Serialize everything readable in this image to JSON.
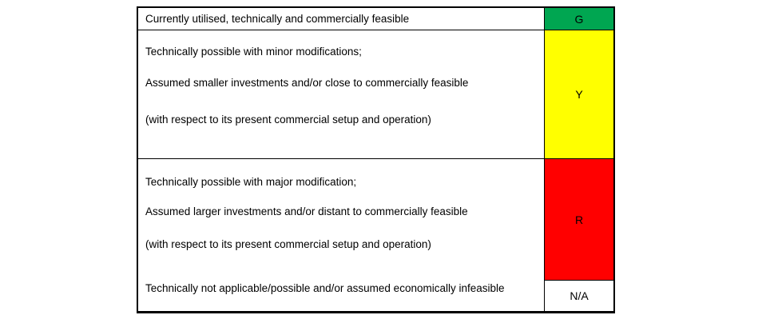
{
  "legend": {
    "rows": [
      {
        "code": "G",
        "color": "#00A651",
        "description": [
          "Currently utilised, technically and commercially feasible"
        ]
      },
      {
        "code": "Y",
        "color": "#FFFF00",
        "description": [
          "Technically possible with minor modifications;",
          "Assumed smaller investments and/or close to commercially feasible",
          "(with respect to its present commercial setup and operation)"
        ]
      },
      {
        "code": "R",
        "color": "#FF0000",
        "description": [
          "Technically possible with major modification;",
          "Assumed larger investments and/or distant to commercially feasible",
          "(with respect to its present commercial setup and operation)"
        ]
      },
      {
        "code": "N/A",
        "color": "#FFFFFF",
        "description": [
          "Technically not applicable/possible and/or assumed economically infeasible"
        ]
      }
    ]
  }
}
